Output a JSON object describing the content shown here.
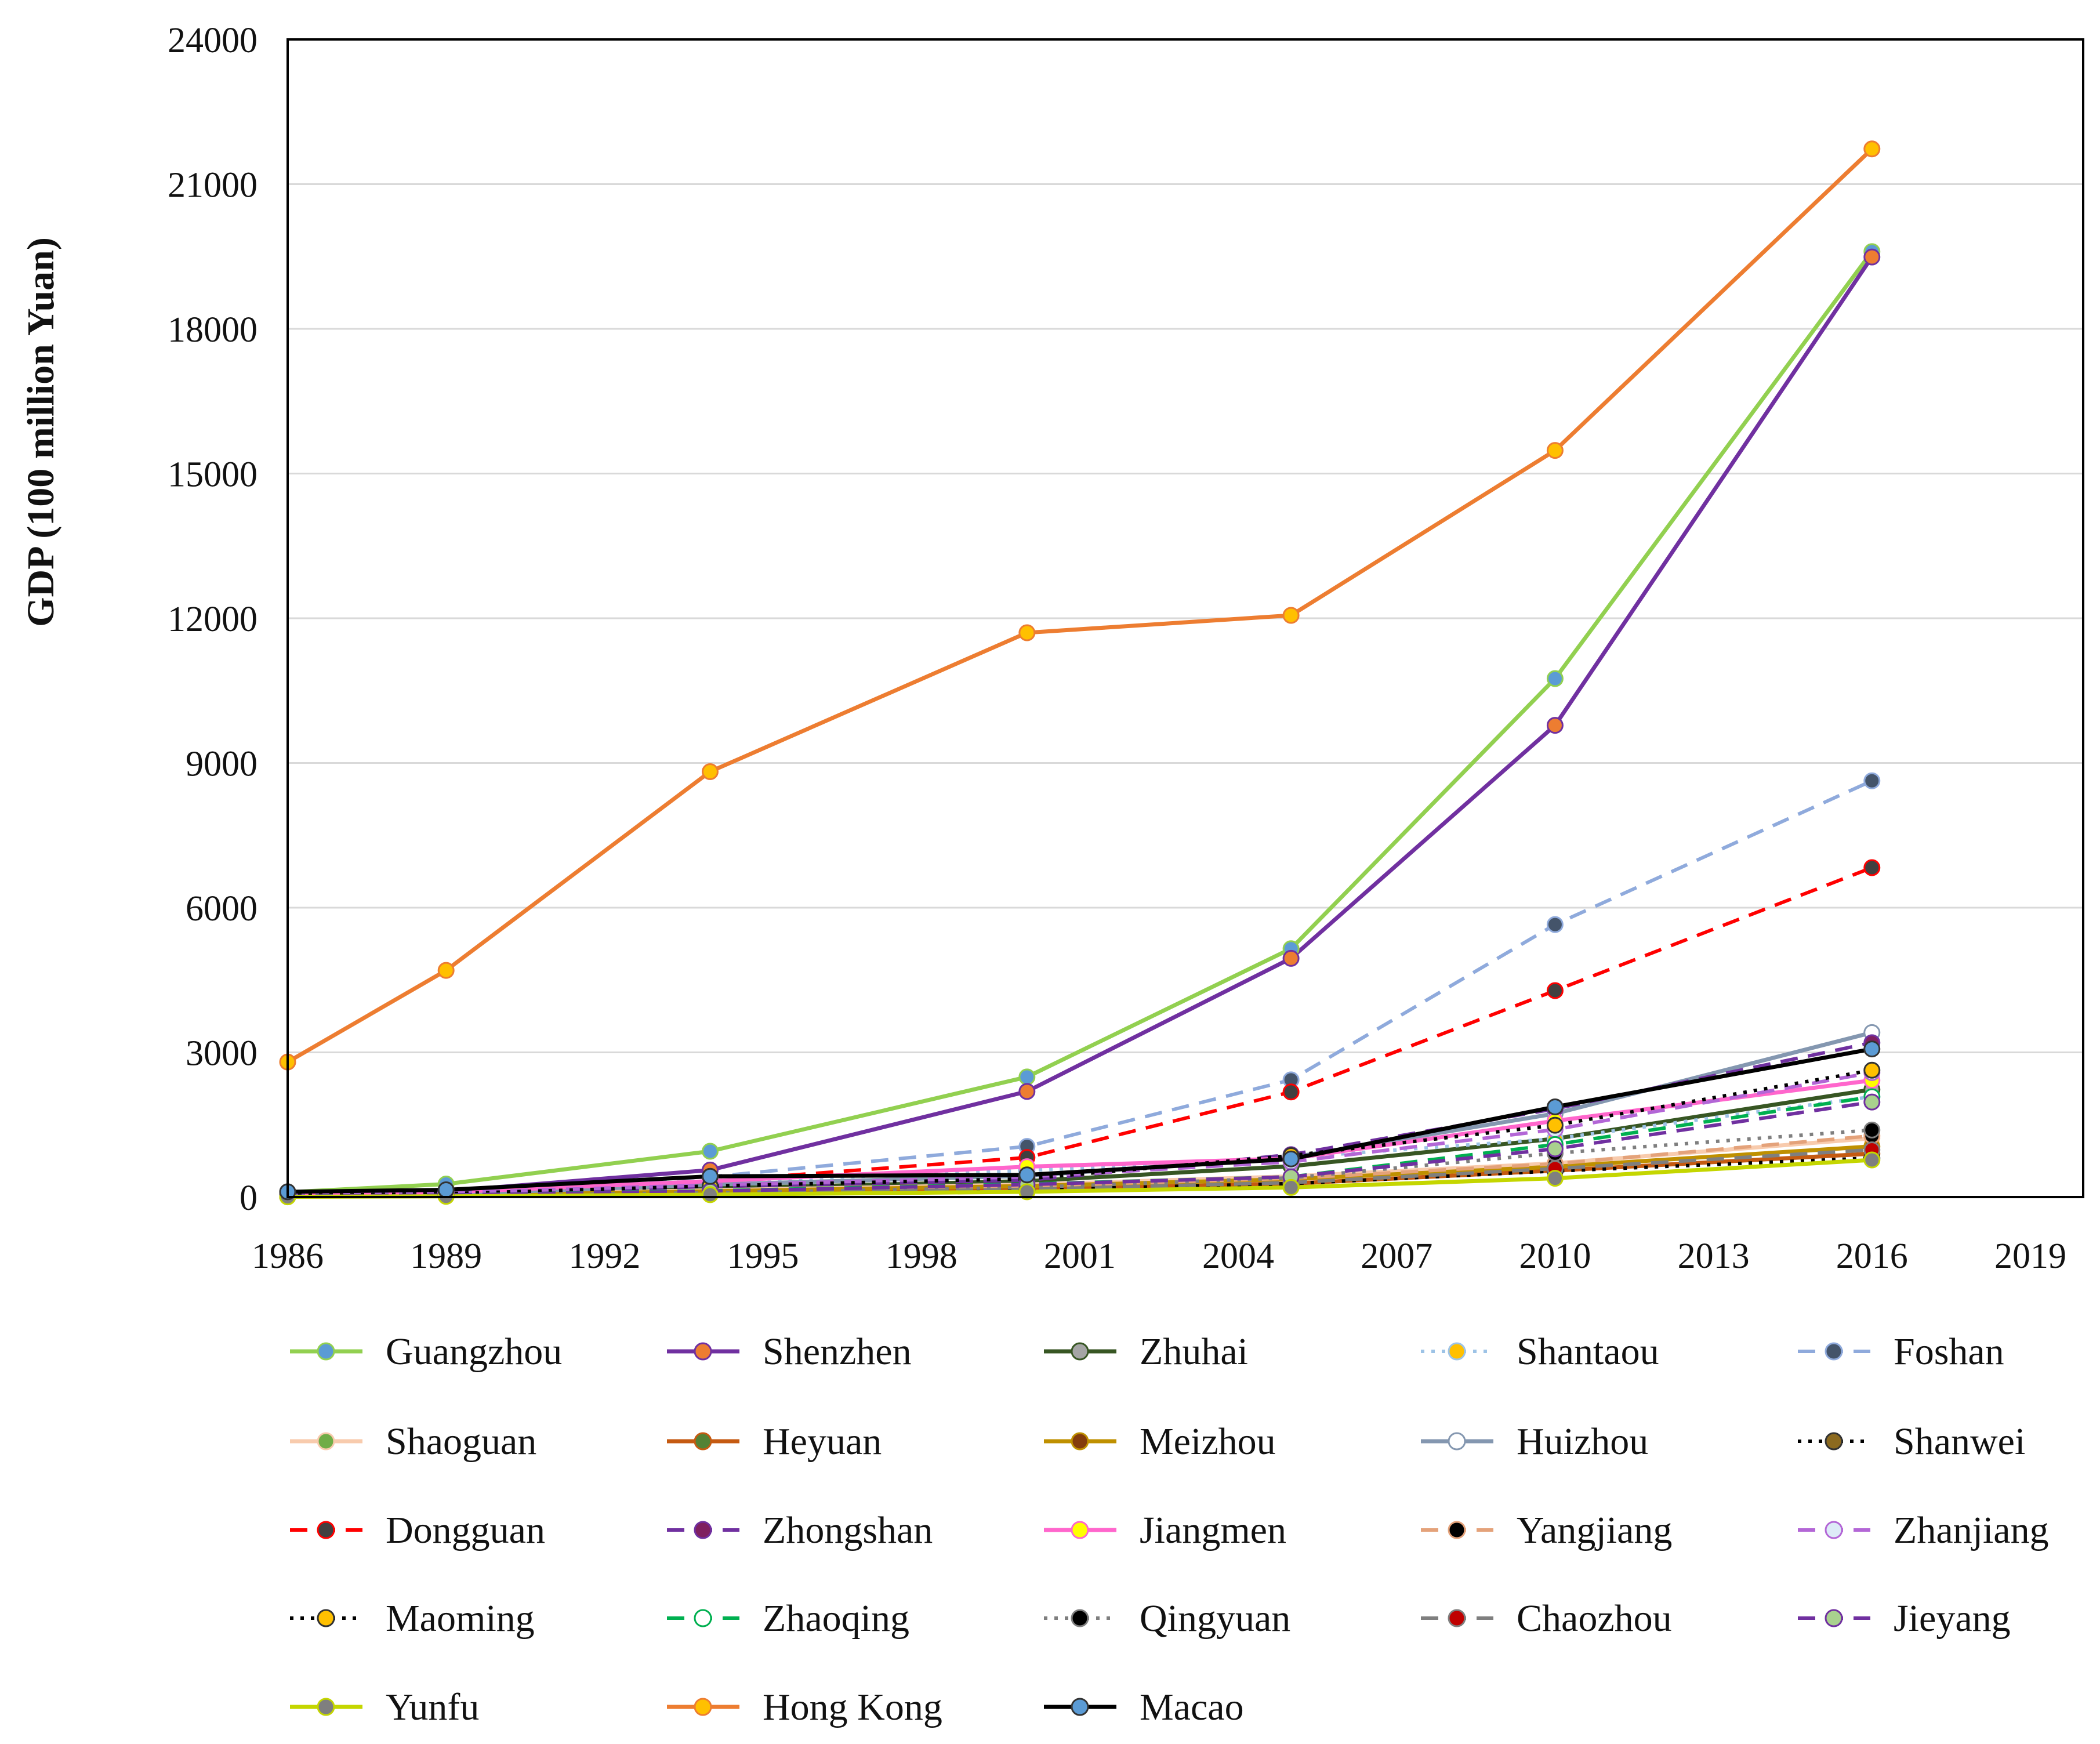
{
  "chart_data": {
    "type": "line",
    "title": "",
    "xlabel": "",
    "ylabel": "GDP (100 million Yuan)",
    "x": [
      1986,
      1989,
      1994,
      2000,
      2005,
      2010,
      2016
    ],
    "xlim": [
      1986,
      2020
    ],
    "ylim": [
      0,
      24000
    ],
    "xticks": [
      "1986",
      "1989",
      "1992",
      "1995",
      "1998",
      "2001",
      "2004",
      "2007",
      "2010",
      "2013",
      "2016",
      "2019"
    ],
    "yticks": [
      "0",
      "3000",
      "6000",
      "9000",
      "12000",
      "15000",
      "18000",
      "21000",
      "24000"
    ],
    "grid": true,
    "legend_position": "bottom",
    "series": [
      {
        "name": "Guangzhou",
        "line_color": "#92d050",
        "marker_color": "#5b9bd5",
        "dash": "solid",
        "values": [
          100,
          270,
          950,
          2490,
          5150,
          10750,
          19600
        ]
      },
      {
        "name": "Shenzhen",
        "line_color": "#7030a0",
        "marker_color": "#ed7d31",
        "dash": "solid",
        "values": [
          40,
          120,
          560,
          2190,
          4950,
          9780,
          19490
        ]
      },
      {
        "name": "Zhuhai",
        "line_color": "#375623",
        "marker_color": "#a5a5a5",
        "dash": "solid",
        "values": [
          10,
          40,
          180,
          330,
          640,
          1210,
          2230
        ]
      },
      {
        "name": "Shantaou",
        "line_color": "#9dc3e6",
        "marker_color": "#ffc000",
        "dash": "dot",
        "values": [
          30,
          80,
          320,
          550,
          820,
          1210,
          2080
        ]
      },
      {
        "name": "Foshan",
        "line_color": "#8faadc",
        "marker_color": "#44546a",
        "dash": "dash",
        "values": [
          40,
          120,
          420,
          1050,
          2430,
          5650,
          8630
        ]
      },
      {
        "name": "Shaoguan",
        "line_color": "#f8cbad",
        "marker_color": "#70ad47",
        "dash": "solid",
        "values": [
          20,
          50,
          140,
          260,
          430,
          700,
          1220
        ]
      },
      {
        "name": "Heyuan",
        "line_color": "#c55a11",
        "marker_color": "#548235",
        "dash": "solid",
        "values": [
          8,
          20,
          70,
          160,
          280,
          550,
          900
        ]
      },
      {
        "name": "Meizhou",
        "line_color": "#bf9000",
        "marker_color": "#843c0c",
        "dash": "solid",
        "values": [
          20,
          40,
          120,
          230,
          370,
          630,
          1050
        ]
      },
      {
        "name": "Huizhou",
        "line_color": "#8497b0",
        "marker_color": "#ffffff",
        "dash": "solid",
        "values": [
          20,
          60,
          260,
          440,
          820,
          1730,
          3410
        ]
      },
      {
        "name": "Shanwei",
        "line_color": "#000000",
        "marker_color": "#8c6a1f",
        "dash": "dot",
        "values": [
          10,
          20,
          60,
          150,
          280,
          540,
          810
        ]
      },
      {
        "name": "Dongguan",
        "line_color": "#ff0000",
        "marker_color": "#404040",
        "dash": "dash",
        "values": [
          20,
          70,
          330,
          820,
          2180,
          4280,
          6830
        ]
      },
      {
        "name": "Zhongshan",
        "line_color": "#7030a0",
        "marker_color": "#7f2060",
        "dash": "dash",
        "values": [
          15,
          50,
          220,
          350,
          880,
          1830,
          3200
        ]
      },
      {
        "name": "Jiangmen",
        "line_color": "#ff66cc",
        "marker_color": "#ffff00",
        "dash": "solid",
        "values": [
          40,
          100,
          330,
          630,
          800,
          1580,
          2420
        ]
      },
      {
        "name": "Yangjiang",
        "line_color": "#e4a27a",
        "marker_color": "#000000",
        "dash": "dash",
        "values": [
          12,
          30,
          110,
          230,
          390,
          690,
          1270
        ]
      },
      {
        "name": "Zhanjiang",
        "line_color": "#b366d6",
        "marker_color": "#ddebf7",
        "dash": "dash",
        "values": [
          40,
          90,
          250,
          420,
          730,
          1400,
          2580
        ]
      },
      {
        "name": "Maoming",
        "line_color": "#000000",
        "marker_color": "#ffc000",
        "dash": "dot",
        "values": [
          30,
          70,
          230,
          380,
          860,
          1490,
          2630
        ]
      },
      {
        "name": "Zhaoqing",
        "line_color": "#00b050",
        "marker_color": "#ffffff",
        "dash": "dash",
        "values": [
          15,
          40,
          130,
          270,
          420,
          1090,
          2080
        ]
      },
      {
        "name": "Qingyuan",
        "line_color": "#7f7f7f",
        "marker_color": "#000000",
        "dash": "dot",
        "values": [
          10,
          30,
          90,
          200,
          400,
          910,
          1390
        ]
      },
      {
        "name": "Chaozhou",
        "line_color": "#7f7f7f",
        "marker_color": "#c00000",
        "dash": "dash",
        "values": [
          10,
          25,
          80,
          160,
          300,
          590,
          980
        ]
      },
      {
        "name": "Jieyang",
        "line_color": "#7030a0",
        "marker_color": "#a9d18e",
        "dash": "dash",
        "values": [
          15,
          40,
          120,
          260,
          420,
          1000,
          1970
        ]
      },
      {
        "name": "Yunfu",
        "line_color": "#c4d600",
        "marker_color": "#7f7f7f",
        "dash": "solid",
        "values": [
          5,
          15,
          50,
          110,
          200,
          390,
          770
        ]
      },
      {
        "name": "Hong Kong",
        "line_color": "#ed7d31",
        "marker_color": "#ffc000",
        "dash": "solid",
        "values": [
          2800,
          4700,
          8820,
          11700,
          12060,
          15480,
          21730
        ]
      },
      {
        "name": "Macao",
        "line_color": "#000000",
        "marker_color": "#5b9bd5",
        "dash": "solid",
        "values": [
          110,
          150,
          430,
          460,
          790,
          1870,
          3070
        ]
      }
    ]
  }
}
